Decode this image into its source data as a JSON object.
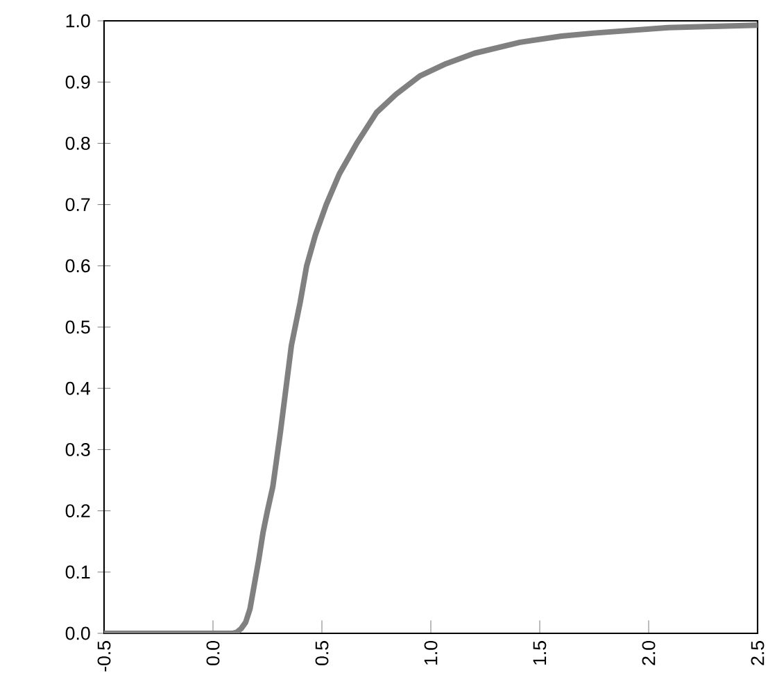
{
  "chart_data": {
    "type": "line",
    "x": [
      -0.5,
      0.09,
      0.11,
      0.13,
      0.15,
      0.17,
      0.19,
      0.21,
      0.23,
      0.25,
      0.275,
      0.31,
      0.36,
      0.4,
      0.43,
      0.47,
      0.52,
      0.58,
      0.66,
      0.75,
      0.84,
      0.95,
      1.07,
      1.2,
      1.41,
      1.6,
      1.75,
      2.09,
      2.3,
      2.5
    ],
    "series": [
      {
        "color": "#808080",
        "values": [
          0,
          0,
          0.002,
          0.008,
          0.018,
          0.04,
          0.08,
          0.12,
          0.165,
          0.2,
          0.24,
          0.33,
          0.47,
          0.54,
          0.6,
          0.65,
          0.7,
          0.75,
          0.8,
          0.85,
          0.88,
          0.91,
          0.93,
          0.947,
          0.965,
          0.975,
          0.98,
          0.989,
          0.991,
          0.993
        ]
      }
    ],
    "xlim": [
      -0.5,
      2.5
    ],
    "ylim": [
      0,
      1
    ],
    "xticks": [
      -0.5,
      {
        "value": 0,
        "label": "0.0"
      },
      0.5,
      {
        "value": 1,
        "label": "1.0"
      },
      1.5,
      {
        "value": 2,
        "label": "2.0"
      },
      2.5
    ],
    "yticks": [
      {
        "value": 0,
        "label": "0.0"
      },
      0.1,
      0.2,
      0.3,
      0.4,
      0.5,
      0.6,
      0.7,
      0.8,
      0.9,
      {
        "value": 1,
        "label": "1.0"
      }
    ],
    "grid": false,
    "marker": "none",
    "line_style": "solid"
  }
}
